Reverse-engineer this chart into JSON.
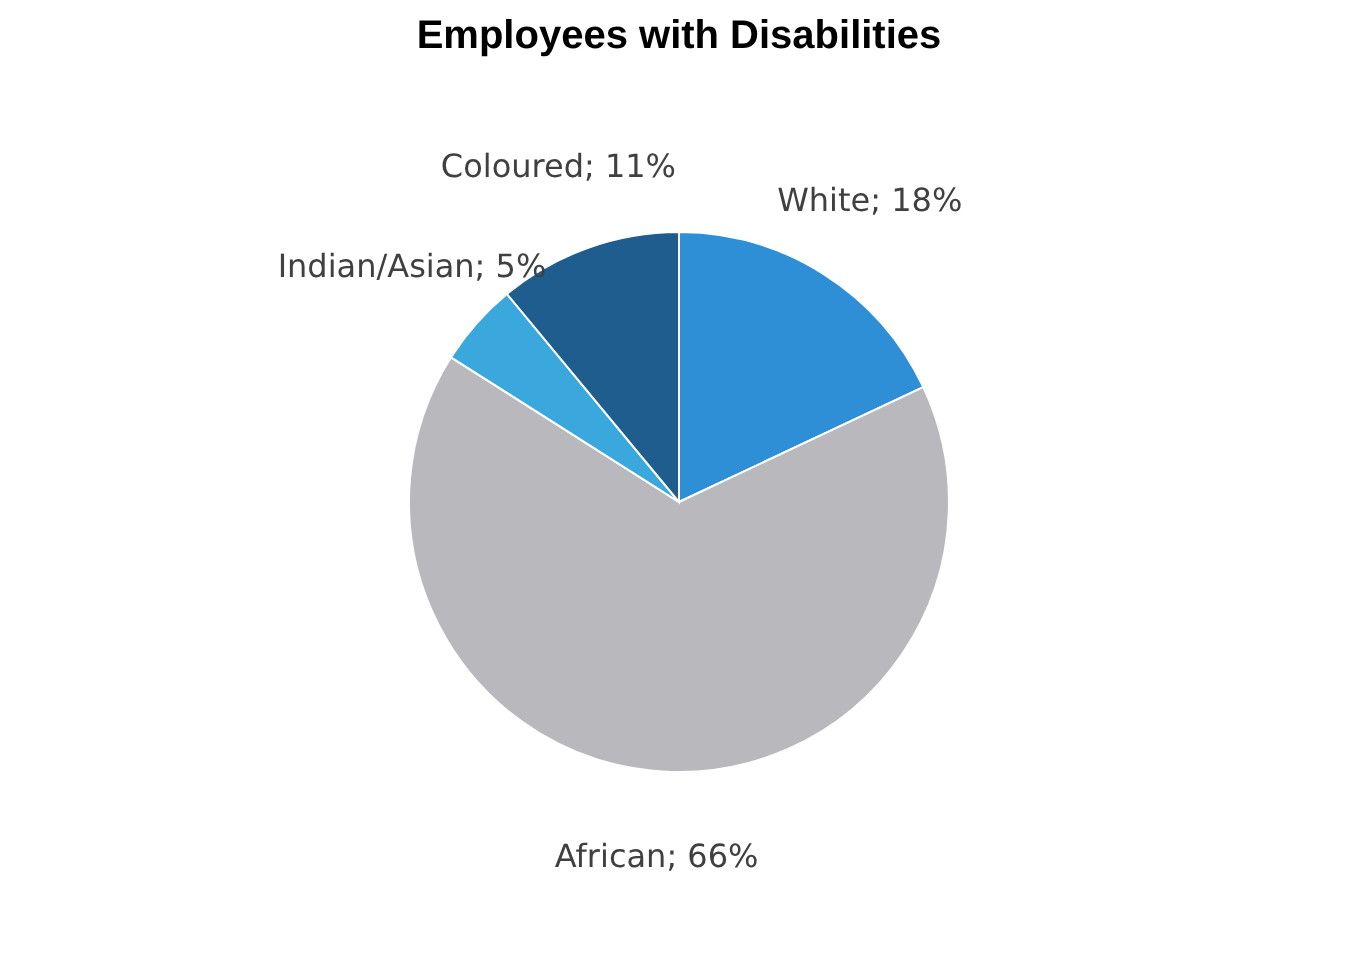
{
  "chart_data": {
    "type": "pie",
    "title": "Employees with Disabilities",
    "categories": [
      "White",
      "African",
      "Indian/Asian",
      "Coloured"
    ],
    "values": [
      18,
      66,
      5,
      11
    ],
    "value_labels": [
      "18%",
      "66%",
      "5%",
      "11%"
    ],
    "colors": [
      "#2e8fd6",
      "#b9b9bd",
      "#3aa8dc",
      "#1f5d8e"
    ]
  }
}
